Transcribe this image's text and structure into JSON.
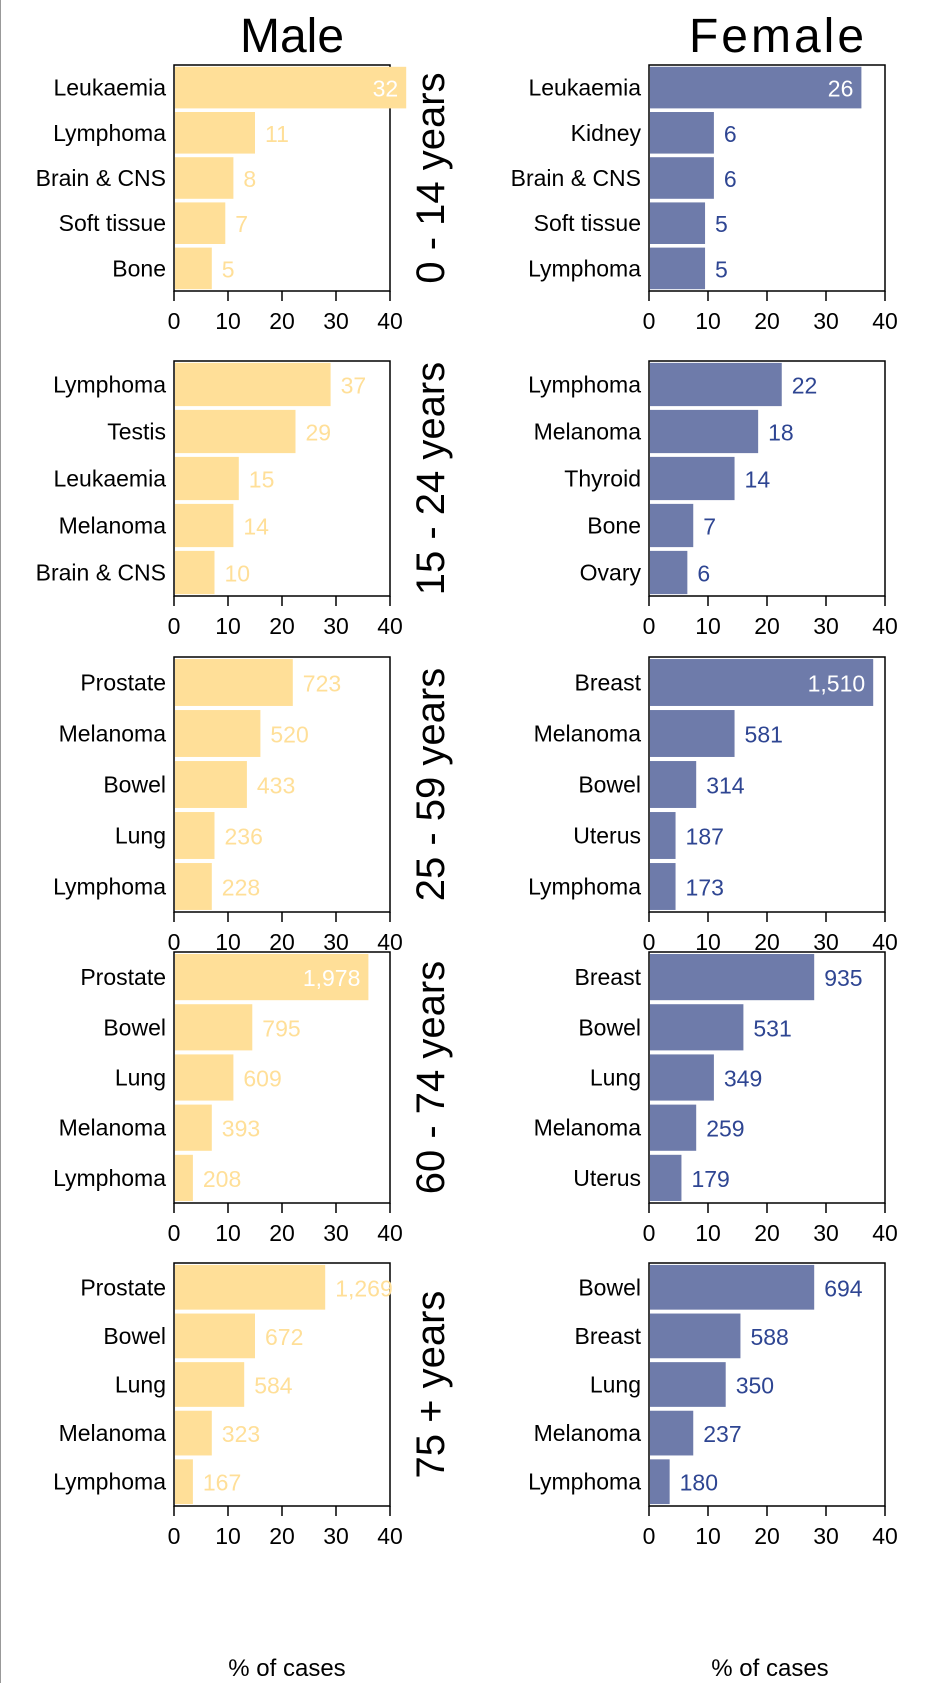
{
  "titles": {
    "male": "Male",
    "female": "Female"
  },
  "xlabel": "% of cases",
  "colors": {
    "male": "#FFDF98",
    "female": "#6E7BAA",
    "male_text": "#FFDF98",
    "female_text": "#2E4592",
    "axis": "#000000"
  },
  "chart_data": [
    {
      "type": "bar",
      "orientation": "horizontal",
      "sex": "Male",
      "age_group": "0 - 14 years",
      "categories": [
        "Leukaemia",
        "Lymphoma",
        "Brain & CNS",
        "Soft tissue",
        "Bone"
      ],
      "values": [
        43,
        15,
        11,
        9.5,
        7
      ],
      "labels": [
        "32",
        "11",
        "8",
        "7",
        "5"
      ],
      "xlim": [
        0,
        40
      ],
      "xticks": [
        0,
        10,
        20,
        30,
        40
      ]
    },
    {
      "type": "bar",
      "orientation": "horizontal",
      "sex": "Female",
      "age_group": "0 - 14 years",
      "categories": [
        "Leukaemia",
        "Kidney",
        "Brain & CNS",
        "Soft tissue",
        "Lymphoma"
      ],
      "values": [
        36,
        11,
        11,
        9.5,
        9.5
      ],
      "labels": [
        "26",
        "6",
        "6",
        "5",
        "5"
      ],
      "xlim": [
        0,
        40
      ],
      "xticks": [
        0,
        10,
        20,
        30,
        40
      ]
    },
    {
      "type": "bar",
      "orientation": "horizontal",
      "sex": "Male",
      "age_group": "15 - 24 years",
      "categories": [
        "Lymphoma",
        "Testis",
        "Leukaemia",
        "Melanoma",
        "Brain & CNS"
      ],
      "values": [
        29,
        22.5,
        12,
        11,
        7.5
      ],
      "labels": [
        "37",
        "29",
        "15",
        "14",
        "10"
      ],
      "xlim": [
        0,
        40
      ],
      "xticks": [
        0,
        10,
        20,
        30,
        40
      ]
    },
    {
      "type": "bar",
      "orientation": "horizontal",
      "sex": "Female",
      "age_group": "15 - 24 years",
      "categories": [
        "Lymphoma",
        "Melanoma",
        "Thyroid",
        "Bone",
        "Ovary"
      ],
      "values": [
        22.5,
        18.5,
        14.5,
        7.5,
        6.5
      ],
      "labels": [
        "22",
        "18",
        "14",
        "7",
        "6"
      ],
      "xlim": [
        0,
        40
      ],
      "xticks": [
        0,
        10,
        20,
        30,
        40
      ]
    },
    {
      "type": "bar",
      "orientation": "horizontal",
      "sex": "Male",
      "age_group": "25 - 59 years",
      "categories": [
        "Prostate",
        "Melanoma",
        "Bowel",
        "Lung",
        "Lymphoma"
      ],
      "values": [
        22,
        16,
        13.5,
        7.5,
        7
      ],
      "labels": [
        "723",
        "520",
        "433",
        "236",
        "228"
      ],
      "xlim": [
        0,
        40
      ],
      "xticks": [
        0,
        10,
        20,
        30,
        40
      ]
    },
    {
      "type": "bar",
      "orientation": "horizontal",
      "sex": "Female",
      "age_group": "25 - 59 years",
      "categories": [
        "Breast",
        "Melanoma",
        "Bowel",
        "Uterus",
        "Lymphoma"
      ],
      "values": [
        38,
        14.5,
        8,
        4.5,
        4.5
      ],
      "labels": [
        "1,510",
        "581",
        "314",
        "187",
        "173"
      ],
      "xlim": [
        0,
        40
      ],
      "xticks": [
        0,
        10,
        20,
        30,
        40
      ]
    },
    {
      "type": "bar",
      "orientation": "horizontal",
      "sex": "Male",
      "age_group": "60 - 74 years",
      "categories": [
        "Prostate",
        "Bowel",
        "Lung",
        "Melanoma",
        "Lymphoma"
      ],
      "values": [
        36,
        14.5,
        11,
        7,
        3.5
      ],
      "labels": [
        "1,978",
        "795",
        "609",
        "393",
        "208"
      ],
      "xlim": [
        0,
        40
      ],
      "xticks": [
        0,
        10,
        20,
        30,
        40
      ]
    },
    {
      "type": "bar",
      "orientation": "horizontal",
      "sex": "Female",
      "age_group": "60 - 74 years",
      "categories": [
        "Breast",
        "Bowel",
        "Lung",
        "Melanoma",
        "Uterus"
      ],
      "values": [
        28,
        16,
        11,
        8,
        5.5
      ],
      "labels": [
        "935",
        "531",
        "349",
        "259",
        "179"
      ],
      "xlim": [
        0,
        40
      ],
      "xticks": [
        0,
        10,
        20,
        30,
        40
      ]
    },
    {
      "type": "bar",
      "orientation": "horizontal",
      "sex": "Male",
      "age_group": "75 + years",
      "categories": [
        "Prostate",
        "Bowel",
        "Lung",
        "Melanoma",
        "Lymphoma"
      ],
      "values": [
        28,
        15,
        13,
        7,
        3.5
      ],
      "labels": [
        "1,269",
        "672",
        "584",
        "323",
        "167"
      ],
      "xlim": [
        0,
        40
      ],
      "xticks": [
        0,
        10,
        20,
        30,
        40
      ]
    },
    {
      "type": "bar",
      "orientation": "horizontal",
      "sex": "Female",
      "age_group": "75 + years",
      "categories": [
        "Bowel",
        "Breast",
        "Lung",
        "Melanoma",
        "Lymphoma"
      ],
      "values": [
        28,
        15.5,
        13,
        7.5,
        3.5
      ],
      "labels": [
        "694",
        "588",
        "350",
        "237",
        "180"
      ],
      "xlim": [
        0,
        40
      ],
      "xticks": [
        0,
        10,
        20,
        30,
        40
      ]
    }
  ]
}
